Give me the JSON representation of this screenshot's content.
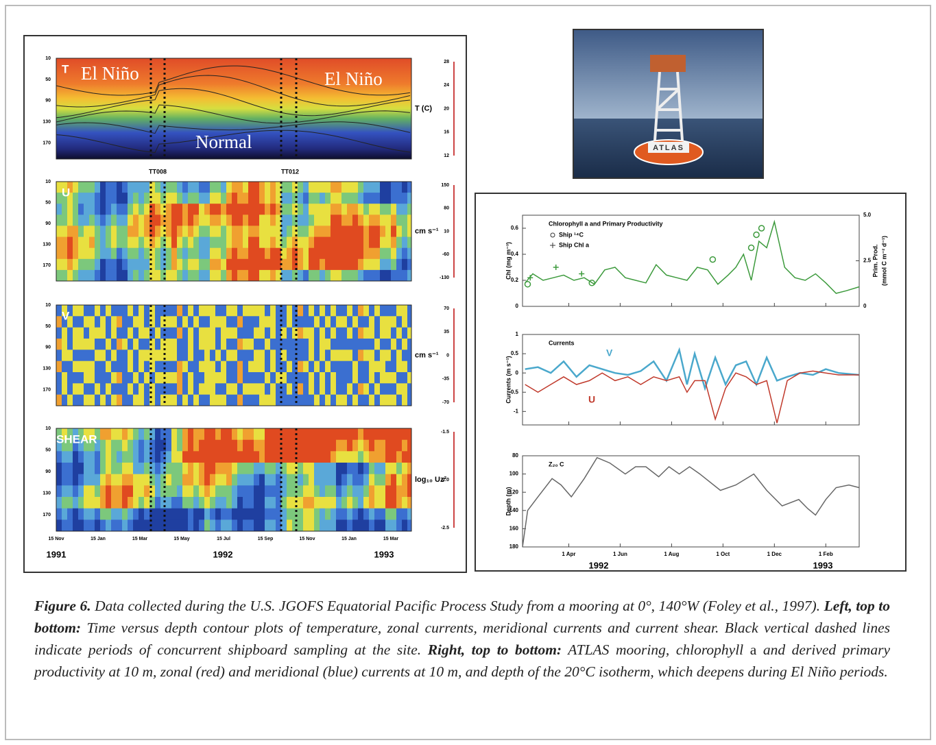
{
  "figure": {
    "left": {
      "x_labels": [
        "15 Nov",
        "15 Jan",
        "15 Mar",
        "15 May",
        "15 Jul",
        "15 Sep",
        "15 Nov",
        "15 Jan",
        "15 Mar"
      ],
      "years": [
        "1991",
        "1992",
        "1993"
      ],
      "cruise_labels": [
        "TT008",
        "TT012"
      ],
      "panels": [
        {
          "label": "T",
          "ylim": [
            10,
            200
          ],
          "yticks": [
            10,
            50,
            90,
            130,
            170
          ],
          "colorbar_ticks": [
            28,
            24,
            20,
            16,
            12
          ],
          "colorbar_label": "T (C)",
          "annotations": [
            "El Niño",
            "El Niño",
            "Normal"
          ]
        },
        {
          "label": "U",
          "ylim": [
            10,
            200
          ],
          "yticks": [
            10,
            50,
            90,
            130,
            170
          ],
          "colorbar_ticks": [
            150,
            80,
            10,
            -60,
            -130
          ],
          "colorbar_label": "cm s⁻¹"
        },
        {
          "label": "V",
          "ylim": [
            10,
            200
          ],
          "yticks": [
            10,
            50,
            90,
            130,
            170
          ],
          "colorbar_ticks": [
            70,
            35,
            0,
            -35,
            -70
          ],
          "colorbar_label": "cm s⁻¹"
        },
        {
          "label": "SHEAR",
          "ylim": [
            10,
            200
          ],
          "yticks": [
            10,
            50,
            90,
            130,
            170
          ],
          "colorbar_ticks": [
            -1.5,
            {
              "value": -2,
              "label": "-2.0"
            },
            -2.5
          ],
          "colorbar_label": "log₁₀ Uz²"
        }
      ]
    },
    "photo": {
      "buoy_label": "ATLAS"
    }
  },
  "chart_data": [
    {
      "type": "line",
      "title": "Chlorophyll a and Primary Productivity",
      "y_label": "Chl (mg m⁻³)",
      "y2_label": [
        "Prim. Prod.",
        "(mmol C m⁻² d⁻¹)"
      ],
      "xlim": [
        2.2,
        15.3
      ],
      "ylim": [
        0,
        0.7
      ],
      "yticks": [
        0,
        0.2,
        0.4,
        0.6
      ],
      "y2lim": [
        0,
        5
      ],
      "y2ticks": [
        0,
        2.5,
        {
          "value": 5,
          "label": "5.0"
        }
      ],
      "x": [
        2.3,
        2.6,
        3,
        3.4,
        3.8,
        4.2,
        4.6,
        5,
        5.4,
        5.8,
        6.2,
        6.6,
        7,
        7.4,
        7.8,
        8.2,
        8.6,
        9,
        9.4,
        9.8,
        10.2,
        10.5,
        10.8,
        11.1,
        11.4,
        11.7,
        12,
        12.4,
        12.8,
        13.2,
        13.6,
        14,
        14.4,
        14.8,
        15.3
      ],
      "series": [
        {
          "color": "#3c9a3c",
          "values": [
            0.18,
            0.25,
            0.2,
            0.22,
            0.24,
            0.2,
            0.22,
            0.17,
            0.28,
            0.3,
            0.22,
            0.2,
            0.18,
            0.32,
            0.24,
            0.22,
            0.2,
            0.3,
            0.28,
            0.17,
            0.24,
            0.3,
            0.4,
            0.2,
            0.5,
            0.45,
            0.65,
            0.3,
            0.22,
            0.2,
            0.25,
            0.18,
            0.1,
            0.12,
            0.15
          ]
        },
        {
          "name": "Ship ¹⁴C",
          "color": "#3c9a3c",
          "marker": "o",
          "x": [
            2.4,
            4.9,
            9.6,
            11.1,
            11.3,
            11.5
          ],
          "values": [
            0.17,
            0.18,
            0.36,
            0.45,
            0.55,
            0.6
          ]
        },
        {
          "name": "Ship Chl a",
          "color": "#3c9a3c",
          "marker": "+",
          "x": [
            2.5,
            3.5,
            4.5
          ],
          "values": [
            0.22,
            0.3,
            0.25
          ]
        }
      ]
    },
    {
      "type": "line",
      "title": "Currents",
      "y_label": "Currents (m s⁻¹)",
      "xlim": [
        2.2,
        15.3
      ],
      "ylim": [
        -1.35,
        1
      ],
      "yticks": [
        1,
        0.5,
        0,
        -0.5,
        -1
      ],
      "x": [
        2.3,
        2.8,
        3.3,
        3.8,
        4.3,
        4.8,
        5.3,
        5.8,
        6.3,
        6.8,
        7.3,
        7.8,
        8.3,
        8.6,
        8.9,
        9.3,
        9.7,
        10.1,
        10.5,
        10.9,
        11.3,
        11.7,
        12.1,
        12.5,
        13,
        13.5,
        14,
        14.5,
        15.3
      ],
      "series": [
        {
          "name": "V",
          "color": "#4aa8cc",
          "values": [
            0.1,
            0.15,
            0,
            0.3,
            -0.1,
            0.2,
            0.1,
            0,
            -0.05,
            0.05,
            0.3,
            -0.2,
            0.6,
            -0.3,
            0.5,
            -0.4,
            0.4,
            -0.3,
            0.2,
            0.3,
            -0.3,
            0.4,
            -0.2,
            -0.1,
            0,
            -0.05,
            0.1,
            0,
            -0.05
          ]
        },
        {
          "name": "U",
          "color": "#c0392b",
          "values": [
            -0.3,
            -0.5,
            -0.3,
            -0.1,
            -0.3,
            -0.2,
            0,
            -0.2,
            -0.1,
            -0.3,
            -0.1,
            -0.2,
            -0.1,
            -0.5,
            -0.2,
            -0.2,
            -1.2,
            -0.4,
            0,
            -0.1,
            -0.3,
            -0.2,
            -1.3,
            -0.2,
            0,
            0.05,
            0,
            -0.05,
            -0.05
          ]
        }
      ]
    },
    {
      "type": "line",
      "title": "Z₂₀ C",
      "y_label": "Depth (m)",
      "y_inverted": true,
      "xlim": [
        2.2,
        15.3
      ],
      "xticks": [
        {
          "value": 4,
          "label": "1 Apr"
        },
        {
          "value": 6,
          "label": "1 Jun"
        },
        {
          "value": 8,
          "label": "1 Aug"
        },
        {
          "value": 10,
          "label": "1 Oct"
        },
        {
          "value": 12,
          "label": "1 Dec"
        },
        {
          "value": 14,
          "label": "1 Feb"
        }
      ],
      "years": [
        "1992",
        "1993"
      ],
      "ylim": [
        80,
        180
      ],
      "yticks": [
        80,
        100,
        120,
        140,
        160,
        180
      ],
      "x": [
        2.2,
        2.4,
        2.8,
        3.35,
        3.7,
        4.1,
        4.6,
        5.1,
        5.6,
        6.2,
        6.6,
        7,
        7.5,
        7.9,
        8.3,
        8.7,
        9.1,
        9.9,
        10.5,
        11.2,
        11.7,
        12.3,
        12.95,
        13.3,
        13.6,
        14,
        14.4,
        14.9,
        15.3
      ],
      "series": [
        {
          "color": "#666666",
          "values": [
            180,
            140,
            125,
            105,
            112,
            125,
            105,
            82,
            88,
            100,
            92,
            92,
            103,
            92,
            100,
            92,
            100,
            118,
            112,
            100,
            118,
            135,
            128,
            138,
            145,
            128,
            115,
            112,
            115
          ]
        }
      ]
    }
  ],
  "caption": {
    "figure_label": "Figure 6.",
    "text1": " Data collected during the U.S. JGOFS Equatorial Pacific Process Study from a mooring at 0°, 140°W (Foley et al., 1997). ",
    "left_label": "Left, top to bottom:",
    "text2": " Time versus depth contour plots of temperature, zonal currents, meridional currents and current shear. Black vertical dashed lines indicate periods of concurrent shipboard sampling at the site. ",
    "right_label": "Right, top to bottom:",
    "text3": " ATLAS mooring, chlorophyll ",
    "text3_symbol": "a",
    "text4": " and derived primary productivity at 10 m, zonal (red) and meridional (blue) currents at 10 m, and depth of the 20°C isotherm, which deepens during El Niño periods."
  }
}
